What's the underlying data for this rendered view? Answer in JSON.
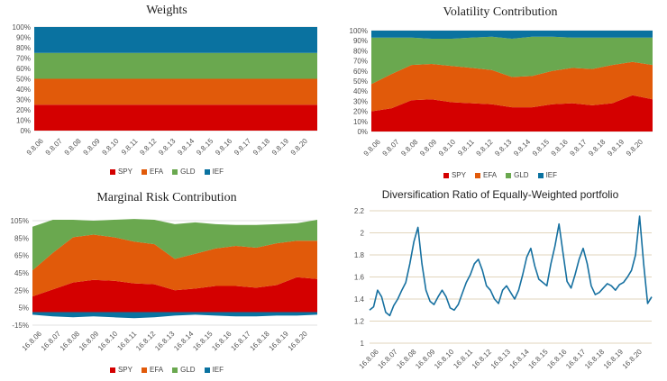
{
  "colors": {
    "SPY": "#d40000",
    "EFA": "#e15a0a",
    "GLD": "#6aa84f",
    "IEF": "#0a72a0",
    "grid": "#d9d9d9",
    "rule": "#d9c9a7",
    "line": "#1670a0"
  },
  "legend_labels": [
    "SPY",
    "EFA",
    "GLD",
    "IEF"
  ],
  "chart_data": [
    {
      "id": "weights",
      "type": "area",
      "stacked": true,
      "title": "Weights",
      "xlabel": "",
      "ylabel": "",
      "ylim": [
        0,
        100
      ],
      "y_ticks": [
        "0%",
        "10%",
        "20%",
        "30%",
        "40%",
        "50%",
        "60%",
        "70%",
        "80%",
        "90%",
        "100%"
      ],
      "x_ticks": [
        "9.8.06",
        "9.8.07",
        "9.8.08",
        "9.8.09",
        "9.8.10",
        "9.8.11",
        "9.8.12",
        "9.8.13",
        "9.8.14",
        "9.8.15",
        "9.8.16",
        "9.8.17",
        "9.8.18",
        "9.8.19",
        "9.8.20"
      ],
      "series": [
        {
          "name": "SPY",
          "values": [
            25,
            25,
            25,
            25,
            25,
            25,
            25,
            25,
            25,
            25,
            25,
            25,
            25,
            25,
            25
          ]
        },
        {
          "name": "EFA",
          "values": [
            25,
            25,
            25,
            25,
            25,
            25,
            25,
            25,
            25,
            25,
            25,
            25,
            25,
            25,
            25
          ]
        },
        {
          "name": "GLD",
          "values": [
            25,
            25,
            25,
            25,
            25,
            25,
            25,
            25,
            25,
            25,
            25,
            25,
            25,
            25,
            25
          ]
        },
        {
          "name": "IEF",
          "values": [
            25,
            25,
            25,
            25,
            25,
            25,
            25,
            25,
            25,
            25,
            25,
            25,
            25,
            25,
            25
          ]
        }
      ],
      "legend": "bottom"
    },
    {
      "id": "volatility",
      "type": "area",
      "stacked": true,
      "title": "Volatility Contribution",
      "xlabel": "",
      "ylabel": "",
      "ylim": [
        0,
        100
      ],
      "y_ticks": [
        "0%",
        "10%",
        "20%",
        "30%",
        "40%",
        "50%",
        "60%",
        "70%",
        "80%",
        "90%",
        "100%"
      ],
      "x_ticks": [
        "9.8.06",
        "9.8.07",
        "9.8.08",
        "9.8.09",
        "9.8.10",
        "9.8.11",
        "9.8.12",
        "9.8.13",
        "9.8.14",
        "9.8.15",
        "9.8.16",
        "9.8.17",
        "9.8.18",
        "9.8.19",
        "9.8.20"
      ],
      "series": [
        {
          "name": "SPY",
          "values": [
            20,
            23,
            31,
            32,
            29,
            28,
            27,
            24,
            24,
            27,
            28,
            26,
            28,
            36,
            32
          ]
        },
        {
          "name": "EFA",
          "values": [
            27,
            34,
            35,
            35,
            36,
            35,
            34,
            30,
            31,
            33,
            35,
            36,
            38,
            33,
            34
          ]
        },
        {
          "name": "GLD",
          "values": [
            46,
            36,
            27,
            25,
            27,
            30,
            33,
            38,
            39,
            34,
            30,
            31,
            27,
            24,
            27
          ]
        },
        {
          "name": "IEF",
          "values": [
            7,
            7,
            7,
            8,
            8,
            7,
            6,
            8,
            6,
            6,
            7,
            7,
            7,
            7,
            7
          ]
        }
      ],
      "legend": "bottom"
    },
    {
      "id": "marginal",
      "type": "area",
      "stacked": true,
      "title": "Marginal Risk Contribution",
      "xlabel": "",
      "ylabel": "",
      "ylim": [
        -15,
        105
      ],
      "y_ticks": [
        "-15%",
        "5%",
        "25%",
        "45%",
        "65%",
        "85%",
        "105%"
      ],
      "y_tick_values": [
        -15,
        5,
        25,
        45,
        65,
        85,
        105
      ],
      "x_ticks": [
        "16.8.06",
        "16.8.07",
        "16.8.08",
        "16.8.09",
        "16.8.10",
        "16.8.11",
        "16.8.12",
        "16.8.13",
        "16.8.14",
        "16.8.15",
        "16.8.16",
        "16.8.17",
        "16.8.18",
        "16.8.19",
        "16.8.20"
      ],
      "series": [
        {
          "name": "SPY",
          "values": [
            18,
            26,
            34,
            37,
            36,
            33,
            32,
            25,
            27,
            30,
            30,
            28,
            31,
            40,
            38
          ]
        },
        {
          "name": "EFA",
          "values": [
            30,
            42,
            52,
            52,
            50,
            48,
            46,
            36,
            40,
            43,
            46,
            46,
            48,
            42,
            44
          ]
        },
        {
          "name": "GLD",
          "values": [
            50,
            38,
            20,
            16,
            20,
            26,
            28,
            40,
            36,
            28,
            24,
            26,
            22,
            20,
            24
          ]
        },
        {
          "name": "IEF",
          "values": [
            -3,
            -5,
            -6,
            -5,
            -6,
            -7,
            -6,
            -4,
            -3,
            -4,
            -5,
            -5,
            -4,
            -4,
            -3
          ]
        }
      ],
      "legend": "bottom"
    },
    {
      "id": "diversification",
      "type": "line",
      "title": "Diversification Ratio of Equally-Weighted portfolio",
      "xlabel": "",
      "ylabel": "",
      "ylim": [
        1,
        2.2
      ],
      "y_ticks": [
        "1",
        "1.2",
        "1.4",
        "1.6",
        "1.8",
        "2",
        "2.2"
      ],
      "y_tick_values": [
        1,
        1.2,
        1.4,
        1.6,
        1.8,
        2,
        2.2
      ],
      "x_ticks": [
        "16.8.06",
        "16.8.07",
        "16.8.08",
        "16.8.09",
        "16.8.10",
        "16.8.11",
        "16.8.12",
        "16.8.13",
        "16.8.14",
        "16.8.15",
        "16.8.16",
        "16.8.17",
        "16.8.18",
        "16.8.19",
        "16.8.20"
      ],
      "x": [
        0,
        0.2,
        0.4,
        0.6,
        0.8,
        1.0,
        1.2,
        1.4,
        1.6,
        1.8,
        2.0,
        2.2,
        2.4,
        2.6,
        2.8,
        3.0,
        3.2,
        3.4,
        3.6,
        3.8,
        4.0,
        4.2,
        4.4,
        4.6,
        4.8,
        5.0,
        5.2,
        5.4,
        5.6,
        5.8,
        6.0,
        6.2,
        6.4,
        6.6,
        6.8,
        7.0,
        7.2,
        7.4,
        7.6,
        7.8,
        8.0,
        8.2,
        8.4,
        8.6,
        8.8,
        9.0,
        9.2,
        9.4,
        9.6,
        9.8,
        10.0,
        10.2,
        10.4,
        10.6,
        10.8,
        11.0,
        11.2,
        11.4,
        11.6,
        11.8,
        12.0,
        12.2,
        12.4,
        12.6,
        12.8,
        13.0,
        13.2,
        13.4,
        13.6,
        13.8,
        14.0
      ],
      "series": [
        {
          "name": "Diversification Ratio",
          "values": [
            1.3,
            1.33,
            1.48,
            1.42,
            1.28,
            1.25,
            1.34,
            1.4,
            1.48,
            1.55,
            1.72,
            1.92,
            2.05,
            1.72,
            1.48,
            1.38,
            1.35,
            1.42,
            1.48,
            1.42,
            1.32,
            1.3,
            1.35,
            1.45,
            1.55,
            1.62,
            1.72,
            1.76,
            1.66,
            1.52,
            1.48,
            1.4,
            1.36,
            1.48,
            1.52,
            1.46,
            1.4,
            1.48,
            1.62,
            1.78,
            1.86,
            1.7,
            1.58,
            1.55,
            1.52,
            1.72,
            1.88,
            2.08,
            1.82,
            1.56,
            1.5,
            1.62,
            1.76,
            1.86,
            1.72,
            1.52,
            1.44,
            1.46,
            1.5,
            1.54,
            1.52,
            1.48,
            1.53,
            1.55,
            1.6,
            1.66,
            1.8,
            2.15,
            1.72,
            1.36,
            1.42
          ]
        }
      ]
    }
  ]
}
